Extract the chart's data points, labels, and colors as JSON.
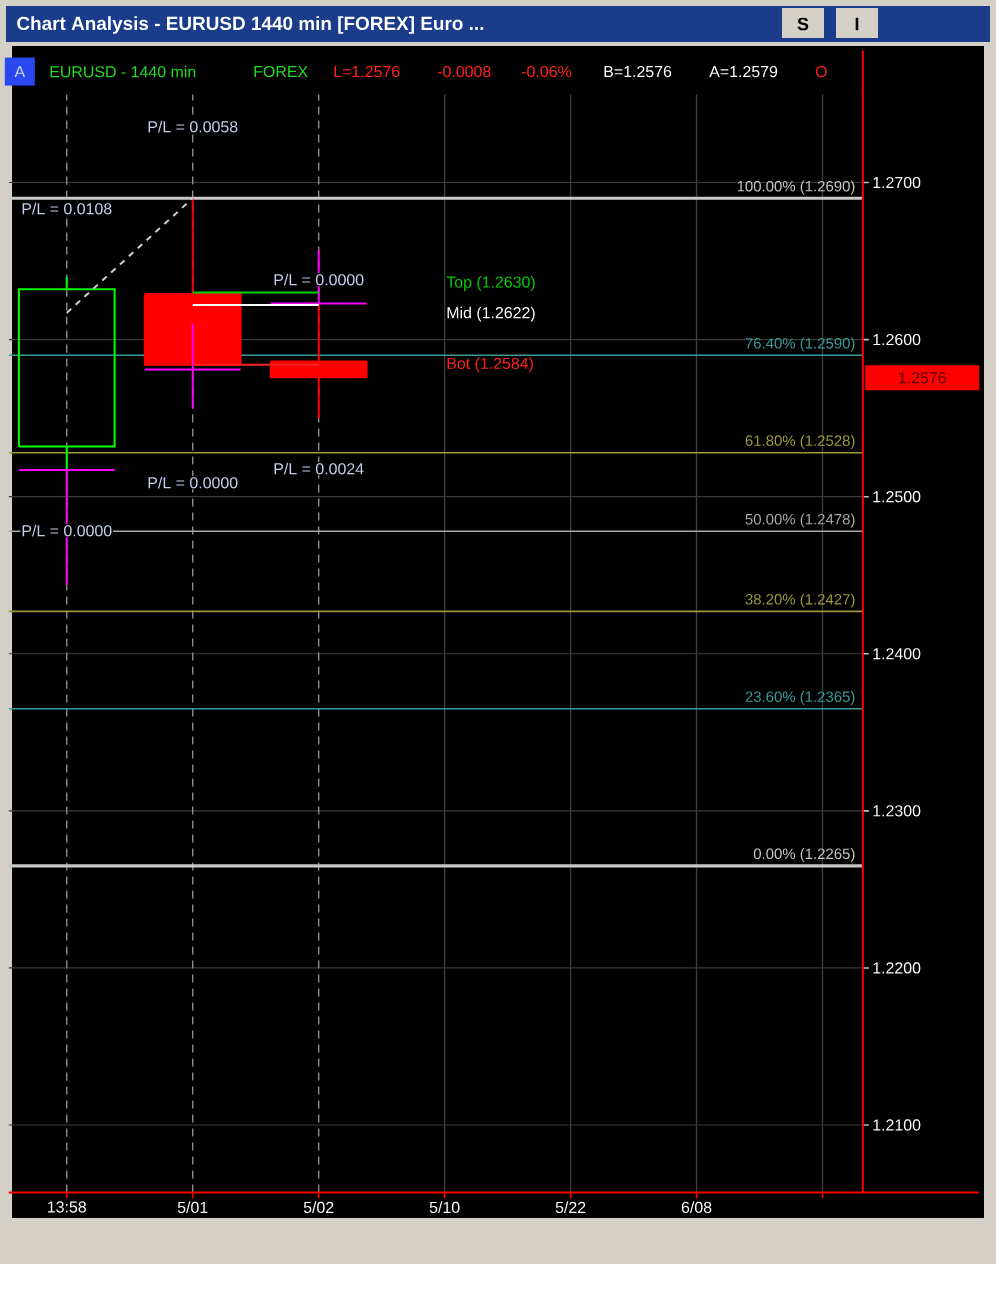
{
  "chart_data": {
    "type": "candlestick",
    "title": "Chart Analysis - EURUSD 1440 min [FOREX] Euro ...",
    "categories": [
      "13:58",
      "5/01",
      "5/02",
      "5/10",
      "5/22",
      "6/08",
      null
    ],
    "series": [
      {
        "ohlc": [
          [
            1.2532,
            1.264,
            1.2517,
            1.2632
          ],
          [
            1.2629,
            1.269,
            1.2584,
            1.2584
          ],
          [
            1.2586,
            1.2622,
            1.255,
            1.2576
          ],
          null,
          null,
          null,
          null
        ],
        "colors": [
          "#00ff00",
          "#ff0000",
          "#ff0000",
          null,
          null,
          null,
          null
        ]
      },
      {
        "ohlc": [
          [
            1.2517,
            1.2517,
            1.2444,
            1.2517
          ],
          [
            1.2581,
            1.261,
            1.2556,
            1.2581
          ],
          [
            1.2623,
            1.2657,
            1.2623,
            1.2623
          ],
          null,
          null,
          null,
          null
        ],
        "color": "#ff00ff"
      },
      {
        "type": "line",
        "name": "Top (1.2630)",
        "color": "#00d000",
        "values": [
          null,
          1.263,
          1.263,
          null,
          null,
          null,
          null
        ]
      },
      {
        "type": "line",
        "name": "Mid (1.2622)",
        "color": "#ffffff",
        "values": [
          null,
          1.2622,
          1.2622,
          null,
          null,
          null,
          null
        ]
      },
      {
        "type": "line",
        "name": "Bot (1.2584)",
        "color": "#ff2020",
        "values": [
          null,
          1.2584,
          1.2584,
          null,
          null,
          null,
          null
        ]
      },
      {
        "type": "line",
        "color": "#d0d0d0",
        "line_style": "dashed",
        "values": [
          1.2617,
          1.269,
          null,
          null,
          null,
          null,
          null
        ]
      }
    ],
    "ylim": [
      1.2057,
      1.2756
    ],
    "yticks": [
      {
        "value": 1.21,
        "label": "1.2100"
      },
      {
        "value": 1.22,
        "label": "1.2200"
      },
      {
        "value": 1.23,
        "label": "1.2300"
      },
      {
        "value": 1.24,
        "label": "1.2400"
      },
      {
        "value": 1.25,
        "label": "1.2500"
      },
      {
        "value": 1.26,
        "label": "1.2600"
      },
      {
        "value": 1.27,
        "label": "1.2700"
      }
    ],
    "grid": true,
    "ref_lines": [
      {
        "axis": "y",
        "value": 1.269,
        "label": "100.00% (1.2690)",
        "color": "#c8c8c8"
      },
      {
        "axis": "y",
        "value": 1.259,
        "label": "76.40% (1.2590)",
        "color": "#3a9a9a"
      },
      {
        "axis": "y",
        "value": 1.2528,
        "label": "61.80% (1.2528)",
        "color": "#9a9a3a"
      },
      {
        "axis": "y",
        "value": 1.2478,
        "label": "50.00% (1.2478)",
        "color": "#a8a8a8"
      },
      {
        "axis": "y",
        "value": 1.2427,
        "label": "38.20% (1.2427)",
        "color": "#9a9a3a"
      },
      {
        "axis": "y",
        "value": 1.2365,
        "label": "23.60% (1.2365)",
        "color": "#3a9a9a"
      },
      {
        "axis": "y",
        "value": 1.2265,
        "label": "0.00% (1.2265)",
        "color": "#c8c8c8"
      }
    ],
    "annotations": [
      "S",
      "I",
      "A",
      "EURUSD - 1440 min",
      "FOREX",
      "L=1.2576",
      "-0.0008",
      "-0.06%",
      "B=1.2576",
      "A=1.2579",
      "O",
      "P/L = 0.0058",
      "P/L = 0.0108",
      "P/L = 0.0000",
      "P/L = 0.0000",
      "P/L = 0.0024",
      "P/L = 0.0000",
      "1.2576"
    ]
  }
}
